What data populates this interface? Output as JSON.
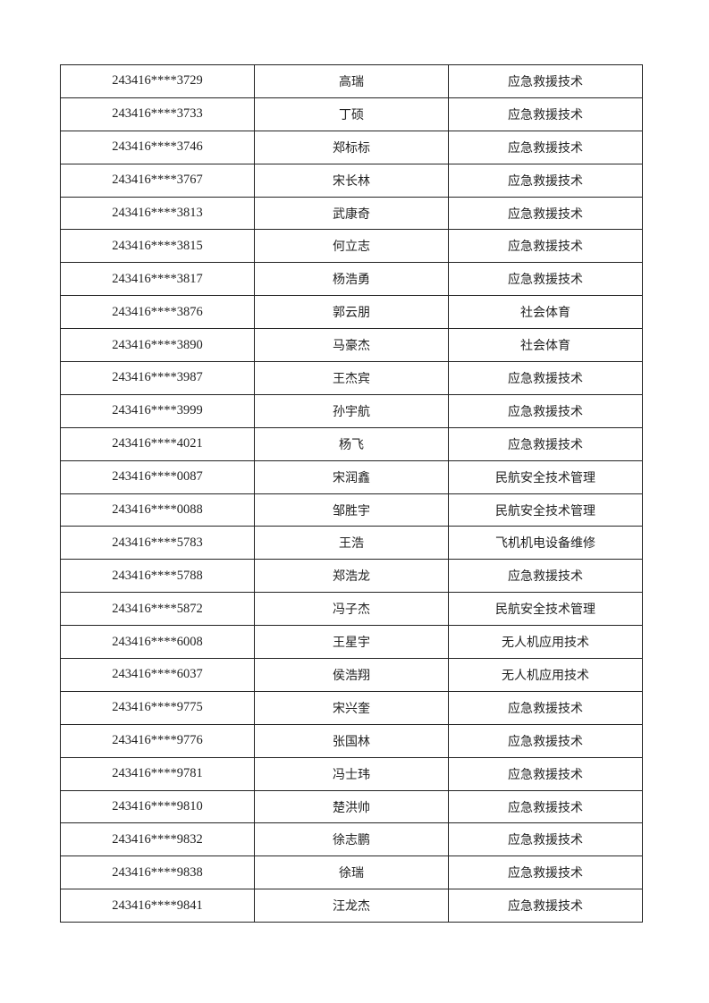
{
  "rows": [
    [
      "243416****3729",
      "高瑞",
      "应急救援技术"
    ],
    [
      "243416****3733",
      "丁硕",
      "应急救援技术"
    ],
    [
      "243416****3746",
      "郑标标",
      "应急救援技术"
    ],
    [
      "243416****3767",
      "宋长林",
      "应急救援技术"
    ],
    [
      "243416****3813",
      "武康奇",
      "应急救援技术"
    ],
    [
      "243416****3815",
      "何立志",
      "应急救援技术"
    ],
    [
      "243416****3817",
      "杨浩勇",
      "应急救援技术"
    ],
    [
      "243416****3876",
      "郭云朋",
      "社会体育"
    ],
    [
      "243416****3890",
      "马豪杰",
      "社会体育"
    ],
    [
      "243416****3987",
      "王杰宾",
      "应急救援技术"
    ],
    [
      "243416****3999",
      "孙宇航",
      "应急救援技术"
    ],
    [
      "243416****4021",
      "杨飞",
      "应急救援技术"
    ],
    [
      "243416****0087",
      "宋润鑫",
      "民航安全技术管理"
    ],
    [
      "243416****0088",
      "邹胜宇",
      "民航安全技术管理"
    ],
    [
      "243416****5783",
      "王浩",
      "飞机机电设备维修"
    ],
    [
      "243416****5788",
      "郑浩龙",
      "应急救援技术"
    ],
    [
      "243416****5872",
      "冯子杰",
      "民航安全技术管理"
    ],
    [
      "243416****6008",
      "王星宇",
      "无人机应用技术"
    ],
    [
      "243416****6037",
      "侯浩翔",
      "无人机应用技术"
    ],
    [
      "243416****9775",
      "宋兴奎",
      "应急救援技术"
    ],
    [
      "243416****9776",
      "张国林",
      "应急救援技术"
    ],
    [
      "243416****9781",
      "冯士玮",
      "应急救援技术"
    ],
    [
      "243416****9810",
      "楚洪帅",
      "应急救援技术"
    ],
    [
      "243416****9832",
      "徐志鹏",
      "应急救援技术"
    ],
    [
      "243416****9838",
      "徐瑞",
      "应急救援技术"
    ],
    [
      "243416****9841",
      "汪龙杰",
      "应急救援技术"
    ]
  ]
}
